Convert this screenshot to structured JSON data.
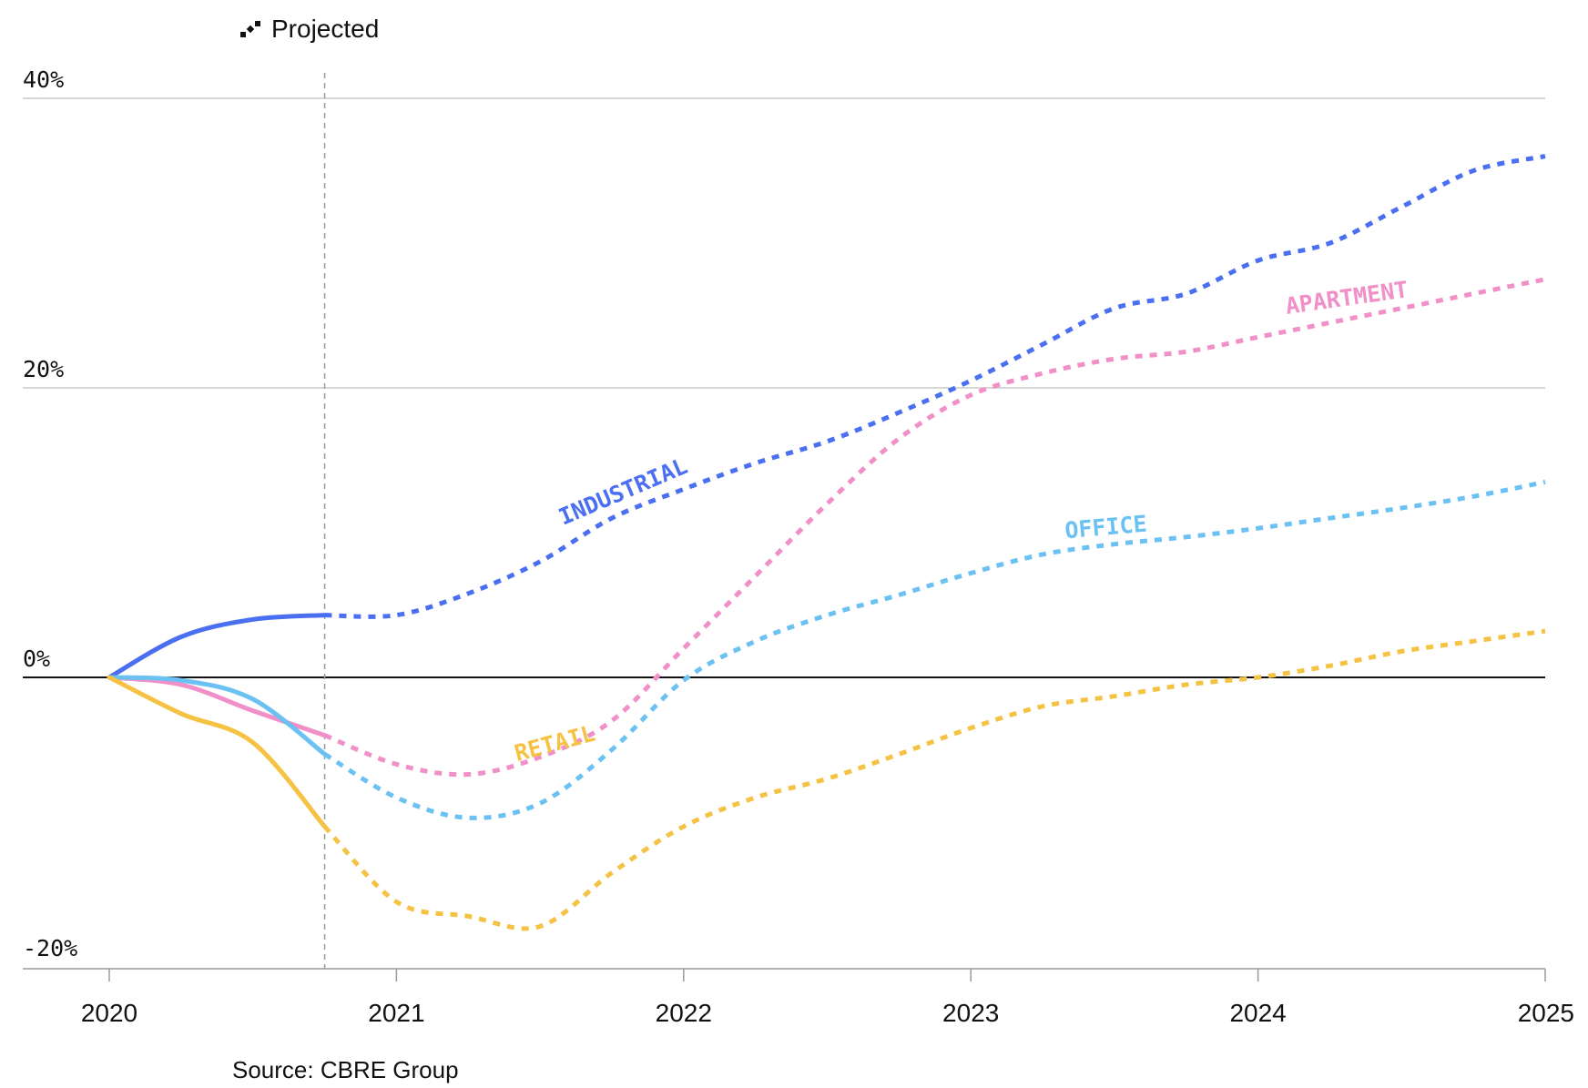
{
  "legend": {
    "projected_label": "Projected",
    "icon": "dashed-line-icon"
  },
  "source": "Source: CBRE Group",
  "chart_data": {
    "type": "line",
    "title": "",
    "xlabel": "",
    "ylabel": "",
    "x_ticks": [
      "2020",
      "2021",
      "2022",
      "2023",
      "2024",
      "2025"
    ],
    "y_ticks": [
      "40%",
      "20%",
      "0%",
      "-20%"
    ],
    "ylim": [
      -20,
      40
    ],
    "xlim": [
      2020,
      2025
    ],
    "projection_start": 2020.75,
    "grid": true,
    "series": [
      {
        "name": "INDUSTRIAL",
        "color": "#4a6ff0",
        "actual": [
          [
            2020.0,
            0
          ],
          [
            2020.25,
            2.8
          ],
          [
            2020.5,
            4.0
          ],
          [
            2020.75,
            4.3
          ]
        ],
        "projected": [
          [
            2020.75,
            4.3
          ],
          [
            2021.0,
            4.3
          ],
          [
            2021.25,
            5.8
          ],
          [
            2021.5,
            8.0
          ],
          [
            2021.75,
            11.0
          ],
          [
            2022.0,
            13.0
          ],
          [
            2022.25,
            14.8
          ],
          [
            2022.5,
            16.3
          ],
          [
            2022.75,
            18.3
          ],
          [
            2023.0,
            20.5
          ],
          [
            2023.25,
            23.0
          ],
          [
            2023.5,
            25.5
          ],
          [
            2023.75,
            26.5
          ],
          [
            2024.0,
            28.8
          ],
          [
            2024.25,
            30.0
          ],
          [
            2024.5,
            32.5
          ],
          [
            2024.75,
            35.0
          ],
          [
            2025.0,
            36.0
          ]
        ]
      },
      {
        "name": "APARTMENT",
        "color": "#f08fc8",
        "actual": [
          [
            2020.0,
            0
          ],
          [
            2020.25,
            -0.5
          ],
          [
            2020.5,
            -2.3
          ],
          [
            2020.75,
            -4.0
          ]
        ],
        "projected": [
          [
            2020.75,
            -4.0
          ],
          [
            2021.0,
            -6.0
          ],
          [
            2021.25,
            -6.7
          ],
          [
            2021.5,
            -5.5
          ],
          [
            2021.75,
            -3.0
          ],
          [
            2022.0,
            2.0
          ],
          [
            2022.25,
            7.0
          ],
          [
            2022.5,
            12.0
          ],
          [
            2022.75,
            16.5
          ],
          [
            2023.0,
            19.5
          ],
          [
            2023.25,
            21.0
          ],
          [
            2023.5,
            22.0
          ],
          [
            2023.75,
            22.5
          ],
          [
            2024.0,
            23.5
          ],
          [
            2024.25,
            24.5
          ],
          [
            2024.5,
            25.5
          ],
          [
            2024.75,
            26.5
          ],
          [
            2025.0,
            27.5
          ]
        ]
      },
      {
        "name": "OFFICE",
        "color": "#6bc2f2",
        "actual": [
          [
            2020.0,
            0
          ],
          [
            2020.25,
            -0.2
          ],
          [
            2020.5,
            -1.5
          ],
          [
            2020.75,
            -5.3
          ]
        ],
        "projected": [
          [
            2020.75,
            -5.3
          ],
          [
            2021.0,
            -8.3
          ],
          [
            2021.25,
            -9.7
          ],
          [
            2021.5,
            -8.7
          ],
          [
            2021.75,
            -5.0
          ],
          [
            2022.0,
            -0.2
          ],
          [
            2022.25,
            2.5
          ],
          [
            2022.5,
            4.3
          ],
          [
            2022.75,
            5.7
          ],
          [
            2023.0,
            7.2
          ],
          [
            2023.25,
            8.5
          ],
          [
            2023.5,
            9.2
          ],
          [
            2023.75,
            9.7
          ],
          [
            2024.0,
            10.3
          ],
          [
            2024.25,
            11.0
          ],
          [
            2024.5,
            11.7
          ],
          [
            2024.75,
            12.5
          ],
          [
            2025.0,
            13.5
          ]
        ]
      },
      {
        "name": "RETAIL",
        "color": "#f5c244",
        "actual": [
          [
            2020.0,
            0
          ],
          [
            2020.25,
            -2.5
          ],
          [
            2020.5,
            -4.5
          ],
          [
            2020.75,
            -10.3
          ]
        ],
        "projected": [
          [
            2020.75,
            -10.3
          ],
          [
            2021.0,
            -15.5
          ],
          [
            2021.25,
            -16.5
          ],
          [
            2021.5,
            -17.2
          ],
          [
            2021.75,
            -13.5
          ],
          [
            2022.0,
            -10.3
          ],
          [
            2022.25,
            -8.3
          ],
          [
            2022.5,
            -7.0
          ],
          [
            2022.75,
            -5.3
          ],
          [
            2023.0,
            -3.5
          ],
          [
            2023.25,
            -2.0
          ],
          [
            2023.5,
            -1.3
          ],
          [
            2023.75,
            -0.5
          ],
          [
            2024.0,
            0.0
          ],
          [
            2024.25,
            0.8
          ],
          [
            2024.5,
            1.8
          ],
          [
            2024.75,
            2.5
          ],
          [
            2025.0,
            3.2
          ]
        ]
      }
    ]
  }
}
